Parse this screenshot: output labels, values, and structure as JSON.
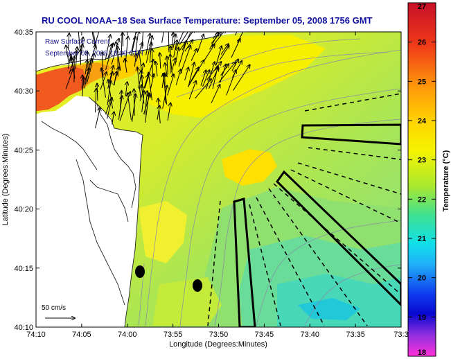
{
  "title": "RU COOL  NOAA−18  Sea Surface Temperature:  September 05, 2008 1756 GMT",
  "legend": {
    "line1": "Raw Surface Current",
    "line2": "September 05, 2008 18:00 GMT"
  },
  "scale_label": "50 cm/s",
  "axes": {
    "xlabel": "Longitude (Degrees:Minutes)",
    "ylabel": "Latitude (Degrees:Minutes)",
    "x_ticks": [
      "74:10",
      "74:05",
      "74:00",
      "73:55",
      "73:50",
      "73:45",
      "73:40",
      "73:35",
      "73:3"
    ],
    "y_ticks": [
      "40:35",
      "40:30",
      "40:25",
      "40:20",
      "40:15",
      "40:10"
    ]
  },
  "colorbar": {
    "label": "Temperature (°C)",
    "ticks": [
      "27",
      "26",
      "25",
      "24",
      "23",
      "22",
      "21",
      "20",
      "19",
      "18"
    ],
    "min": 18,
    "max": 27
  },
  "colors": {
    "title": "#1010a0",
    "legend_text": "#10108a"
  }
}
